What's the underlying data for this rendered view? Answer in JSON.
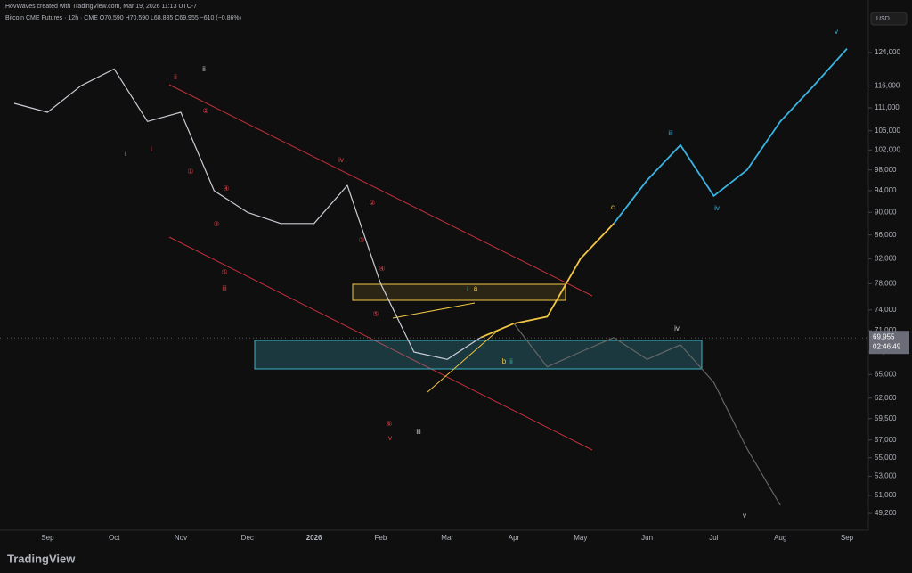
{
  "header": {
    "credit": "HovWaves created with TradingView.com, Mar 19, 2026 11:13 UTC-7",
    "legend": "Bitcoin CME Futures · 12h · CME  O70,590 H70,590 L68,835 C69,955 −610 (−0.86%)",
    "currency": "USD",
    "logo": "TradingView"
  },
  "chart_data": {
    "type": "line",
    "log_scale": true,
    "grid": false,
    "categories": [
      null,
      "Sep",
      null,
      "Oct",
      null,
      "Nov",
      null,
      "Dec",
      null,
      "2026",
      null,
      "Feb",
      null,
      "Mar",
      null,
      "Apr",
      null,
      "May",
      null,
      "Jun",
      null,
      "Jul",
      null,
      "Aug",
      null,
      "Sep"
    ],
    "ylim": [
      47560,
      134400
    ],
    "yticks": [
      {
        "value": 124000,
        "label": "124,000"
      },
      {
        "value": 116000,
        "label": "116,000"
      },
      {
        "value": 111000,
        "label": "111,000"
      },
      {
        "value": 106000,
        "label": "106,000"
      },
      {
        "value": 102000,
        "label": "102,000"
      },
      {
        "value": 98000,
        "label": "98,000"
      },
      {
        "value": 94000,
        "label": "94,000"
      },
      {
        "value": 90000,
        "label": "90,000"
      },
      {
        "value": 86000,
        "label": "86,000"
      },
      {
        "value": 82000,
        "label": "82,000"
      },
      {
        "value": 78000,
        "label": "78,000"
      },
      {
        "value": 74000,
        "label": "74,000"
      },
      {
        "value": 71000,
        "label": "71,000"
      },
      {
        "value": 68000,
        "label": "68,000"
      },
      {
        "value": 65000,
        "label": "65,000"
      },
      {
        "value": 62000,
        "label": "62,000"
      },
      {
        "value": 59500,
        "label": "59,500"
      },
      {
        "value": 57000,
        "label": "57,000"
      },
      {
        "value": 55000,
        "label": "55,000"
      },
      {
        "value": 53000,
        "label": "53,000"
      },
      {
        "value": 51000,
        "label": "51,000"
      },
      {
        "value": 49200,
        "label": "49,200"
      }
    ],
    "last_price": {
      "value": 69955,
      "label": "69,955"
    },
    "countdown": "02:46:49",
    "series": [
      {
        "name": "Bitcoin CME Futures",
        "color": "#c9ccd4",
        "values": [
          112000,
          110000,
          116000,
          120000,
          108000,
          110000,
          94000,
          90000,
          88000,
          88000,
          95000,
          78000,
          68000,
          67000,
          70000,
          null,
          null,
          null,
          null,
          null,
          null,
          null,
          null,
          null,
          null,
          null
        ]
      },
      {
        "name": "c",
        "color": "#f2c744",
        "values": [
          null,
          null,
          null,
          null,
          null,
          null,
          null,
          null,
          null,
          null,
          null,
          null,
          null,
          null,
          70000,
          72000,
          73000,
          82000,
          88000,
          null,
          null,
          null,
          null,
          null,
          null,
          null
        ]
      },
      {
        "name": "v",
        "color": "#3bb3e0",
        "values": [
          null,
          null,
          null,
          null,
          null,
          null,
          null,
          null,
          null,
          null,
          null,
          null,
          null,
          null,
          null,
          null,
          null,
          null,
          88000,
          96000,
          103000,
          93000,
          98000,
          108000,
          116000,
          125000
        ]
      },
      {
        "name": "iv",
        "color": "#666666",
        "values": [
          null,
          null,
          null,
          null,
          null,
          null,
          null,
          null,
          null,
          null,
          null,
          null,
          null,
          null,
          null,
          72000,
          66000,
          68000,
          70000,
          67000,
          69000,
          64000,
          56000,
          50000,
          null,
          null
        ]
      }
    ],
    "annotations": [
      {
        "text": "ii",
        "color": "#d0d0d0"
      },
      {
        "text": "i",
        "color": "#d0d0d0"
      },
      {
        "text": "ii",
        "color": "#e0404a"
      },
      {
        "text": "i",
        "color": "#e0404a"
      },
      {
        "text": "①",
        "color": "#e0404a"
      },
      {
        "text": "②",
        "color": "#e0404a"
      },
      {
        "text": "③",
        "color": "#e0404a"
      },
      {
        "text": "④",
        "color": "#e0404a"
      },
      {
        "text": "⑤",
        "color": "#e0404a"
      },
      {
        "text": "iii",
        "color": "#e0404a"
      },
      {
        "text": "iv",
        "color": "#e0404a"
      },
      {
        "text": "②",
        "color": "#e0404a"
      },
      {
        "text": "③",
        "color": "#e0404a"
      },
      {
        "text": "④",
        "color": "#e0404a"
      },
      {
        "text": "⑤",
        "color": "#e0404a"
      },
      {
        "text": "⑥",
        "color": "#e0404a"
      },
      {
        "text": "v",
        "color": "#e0404a"
      },
      {
        "text": "iii",
        "color": "#d0d0d0"
      },
      {
        "text": "i",
        "color": "#3bb3a8"
      },
      {
        "text": "a",
        "color": "#f2c744"
      },
      {
        "text": "b",
        "color": "#f2c744"
      },
      {
        "text": "ii",
        "color": "#3bb3a8"
      },
      {
        "text": "c",
        "color": "#f2c744"
      },
      {
        "text": "iii",
        "color": "#3bb3e0"
      },
      {
        "text": "iv",
        "color": "#3bb3e0"
      },
      {
        "text": "v",
        "color": "#3bb3e0"
      },
      {
        "text": "iv",
        "color": "#d0d0d0"
      },
      {
        "text": "v",
        "color": "#d0d0d0"
      }
    ]
  }
}
